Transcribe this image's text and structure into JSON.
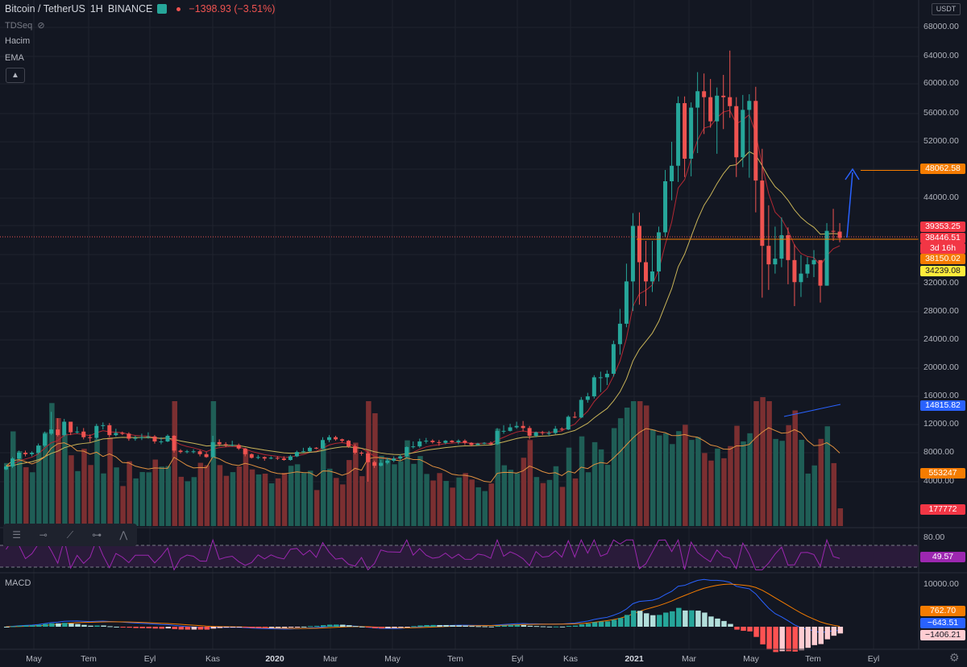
{
  "legend": {
    "symbol": "Bitcoin / TetherUS",
    "interval": "1H",
    "exchange": "BINANCE",
    "change": "−1398.93 (−3.51%)",
    "colors": {
      "up": "#26a69a",
      "down": "#ef5350"
    }
  },
  "indicators": {
    "tdseq": "TDSeq",
    "volume": "Hacim",
    "ema": "EMA",
    "collapse_icon": "chevron-up-icon",
    "macd": "MACD"
  },
  "toolbar_icons": [
    "menu-lines-icon",
    "horizontal-line-icon",
    "trend-line-icon",
    "ray-icon",
    "pattern-icon"
  ],
  "price_axis": {
    "unit": "USDT",
    "ticks": [
      "68000.00",
      "64000.00",
      "60000.00",
      "56000.00",
      "52000.00",
      "44000.00",
      "32000.00",
      "28000.00",
      "24000.00",
      "20000.00",
      "16000.00",
      "12000.00",
      "8000.00",
      "4000.00"
    ],
    "rsi_ticks": [
      "80.00"
    ],
    "macd_ticks": [
      "10000.00"
    ]
  },
  "tags": {
    "target": {
      "text": "48062.58",
      "bg": "#f57c00",
      "fg": "#ffffff"
    },
    "last_price": {
      "text": "39353.25",
      "bg": "#f23645",
      "fg": "#ffffff"
    },
    "last_price2": {
      "text": "38446.51",
      "bg": "#f23645",
      "fg": "#ffffff"
    },
    "countdown": {
      "text": "3d 16h",
      "bg": "#f23645",
      "fg": "#ffffff"
    },
    "level": {
      "text": "38150.02",
      "bg": "#f57c00",
      "fg": "#ffffff"
    },
    "ema_long": {
      "text": "34239.08",
      "bg": "#ffeb3b",
      "fg": "#131722"
    },
    "trend": {
      "text": "14815.82",
      "bg": "#2962ff",
      "fg": "#ffffff"
    },
    "vol_ma": {
      "text": "553247",
      "bg": "#f57c00",
      "fg": "#ffffff"
    },
    "volume": {
      "text": "177772",
      "bg": "#f23645",
      "fg": "#ffffff"
    },
    "rsi": {
      "text": "49.57",
      "bg": "#9c27b0",
      "fg": "#ffffff"
    },
    "macd_signal": {
      "text": "762.70",
      "bg": "#f57c00",
      "fg": "#ffffff"
    },
    "macd_line": {
      "text": "−643.51",
      "bg": "#2962ff",
      "fg": "#ffffff"
    },
    "macd_hist": {
      "text": "−1406.21",
      "bg": "#ffcdd2",
      "fg": "#131722"
    }
  },
  "time_axis": [
    "May",
    "Tem",
    "Eyl",
    "Kas",
    "2020",
    "Mar",
    "May",
    "Tem",
    "Eyl",
    "Kas",
    "2021",
    "Mar",
    "May",
    "Tem",
    "Eyl"
  ],
  "settings_icon": "gear-icon",
  "chart_data": {
    "type": "candlestick",
    "symbol": "Bitcoin / TetherUS",
    "ohlc_weekly": {
      "open": [
        5700,
        6100,
        7200,
        8000,
        7800,
        8000,
        9000,
        10700,
        11300,
        10500,
        12400,
        10900,
        11000,
        10200,
        10100,
        11800,
        11900,
        10500,
        10800,
        10700,
        10000,
        10100,
        10200,
        10300,
        9600,
        9600,
        10400,
        8300,
        8100,
        8200,
        8200,
        7800,
        7400,
        9500,
        9200,
        9100,
        9100,
        8600,
        7800,
        7300,
        7400,
        7200,
        7300,
        7200,
        7000,
        7500,
        8100,
        8200,
        8700,
        8600,
        9800,
        10200,
        9900,
        9700,
        8900,
        8000,
        7900,
        6700,
        6200,
        6600,
        6900,
        7200,
        7500,
        8800,
        8900,
        9600,
        9700,
        9500,
        9400,
        9700,
        9500,
        9700,
        9400,
        9100,
        9300,
        9400,
        9200,
        11100,
        11100,
        11600,
        11800,
        11500,
        10400,
        10900,
        10800,
        10800,
        11400,
        11300,
        13100,
        13000,
        15500,
        16000,
        18700,
        18700,
        19200,
        23400,
        26300,
        32300,
        40100,
        35000,
        32300,
        33700,
        39200,
        46400,
        48600,
        57400,
        49600,
        56800,
        59000,
        58200,
        54900,
        58400,
        58200,
        57000,
        49800,
        56500,
        57700,
        46500,
        37300,
        34700,
        35500,
        38800,
        35300,
        32200,
        33400,
        34700,
        35300,
        31700,
        39400,
        39300
      ],
      "close": [
        6100,
        7200,
        8000,
        7800,
        8000,
        9000,
        10700,
        11300,
        10500,
        12400,
        10900,
        11000,
        10200,
        10100,
        11800,
        11900,
        10500,
        10800,
        10700,
        10000,
        10100,
        10200,
        10300,
        9600,
        9600,
        10400,
        8300,
        8100,
        8200,
        8200,
        7800,
        7400,
        9500,
        9200,
        9100,
        9100,
        8600,
        7800,
        7300,
        7400,
        7200,
        7300,
        7200,
        7000,
        7500,
        8100,
        8200,
        8700,
        8600,
        9800,
        10200,
        9900,
        9700,
        8900,
        8000,
        7900,
        6700,
        6200,
        6600,
        6900,
        7200,
        7500,
        8800,
        8900,
        9600,
        9700,
        9500,
        9400,
        9700,
        9500,
        9700,
        9400,
        9100,
        9300,
        9400,
        9200,
        11100,
        11100,
        11600,
        11800,
        11500,
        10400,
        10900,
        10800,
        10800,
        11400,
        11300,
        13100,
        13000,
        15500,
        16000,
        18700,
        18700,
        19200,
        23400,
        26300,
        32300,
        40100,
        35000,
        32300,
        33700,
        39200,
        46400,
        48600,
        57400,
        49600,
        56800,
        59000,
        58200,
        54900,
        58400,
        58200,
        57000,
        49800,
        56500,
        57700,
        46500,
        37300,
        34700,
        35500,
        38800,
        35300,
        32200,
        33400,
        34700,
        35300,
        31700,
        39400,
        39300,
        38400
      ],
      "high": [
        6300,
        7400,
        8300,
        8300,
        8200,
        9300,
        11000,
        13800,
        12900,
        12800,
        12000,
        11700,
        11500,
        10600,
        12100,
        12300,
        12200,
        11400,
        11000,
        10900,
        10400,
        10700,
        10900,
        10500,
        10200,
        10600,
        10500,
        8500,
        8400,
        8500,
        8400,
        8100,
        10400,
        9900,
        9500,
        9700,
        9300,
        8700,
        7900,
        7700,
        7500,
        7500,
        7500,
        7500,
        7700,
        8300,
        8700,
        8900,
        8800,
        10200,
        10500,
        10400,
        10000,
        9800,
        9200,
        8200,
        8200,
        6900,
        7000,
        7300,
        7500,
        7800,
        8900,
        9600,
        10000,
        10100,
        9900,
        9800,
        9800,
        9800,
        9900,
        9900,
        9500,
        9400,
        9500,
        9600,
        11500,
        11900,
        12100,
        12400,
        12500,
        11800,
        11000,
        11100,
        11100,
        11800,
        11600,
        13300,
        13800,
        15900,
        16500,
        19000,
        19500,
        19700,
        23900,
        28400,
        34800,
        41900,
        42000,
        38000,
        38000,
        40000,
        48000,
        52000,
        58300,
        58300,
        57500,
        61700,
        61500,
        60700,
        59500,
        61300,
        64800,
        58200,
        58500,
        58600,
        59600,
        51000,
        43000,
        40000,
        41300,
        39900,
        37500,
        36000,
        35700,
        36700,
        35200,
        40500,
        42500,
        40500
      ],
      "low": [
        5600,
        5900,
        7100,
        7500,
        7500,
        7800,
        8800,
        10500,
        10300,
        10300,
        10500,
        10700,
        9900,
        9500,
        9900,
        11300,
        10200,
        10300,
        10500,
        9700,
        9700,
        9800,
        10000,
        9300,
        9200,
        9500,
        8000,
        7900,
        7900,
        7900,
        7500,
        7300,
        7300,
        8900,
        8800,
        8900,
        8400,
        7500,
        7200,
        7100,
        6900,
        7100,
        7000,
        6900,
        6900,
        7400,
        8000,
        8100,
        8500,
        8500,
        9500,
        9700,
        9500,
        8700,
        7800,
        7600,
        4000,
        5900,
        6100,
        6400,
        6700,
        6900,
        7300,
        8600,
        8700,
        9300,
        9300,
        9000,
        9200,
        9400,
        9200,
        9100,
        8900,
        9000,
        9200,
        9100,
        9100,
        10700,
        11000,
        11400,
        11000,
        9900,
        10200,
        10500,
        10400,
        10600,
        11100,
        11200,
        12900,
        12900,
        15100,
        15700,
        16600,
        17600,
        18800,
        21900,
        25800,
        28100,
        29000,
        28800,
        30800,
        32300,
        38600,
        43700,
        46300,
        47000,
        47100,
        50400,
        53100,
        54000,
        50300,
        53800,
        55400,
        47000,
        48400,
        46900,
        42000,
        30000,
        31100,
        33400,
        34300,
        31900,
        28800,
        30100,
        32800,
        32900,
        29300,
        31700,
        38000,
        37800
      ]
    },
    "series": [
      {
        "name": "EMA"
      },
      {
        "name": "Hacim"
      },
      {
        "name": "MACD"
      }
    ],
    "horizontal_levels": [
      48062.58,
      38150.02
    ],
    "last_price": 38446.51,
    "ylim": [
      0,
      68000
    ],
    "y_scale": "log",
    "x_labels": [
      "May",
      "Tem",
      "Eyl",
      "Kas",
      "2020",
      "Mar",
      "May",
      "Tem",
      "Eyl",
      "Kas",
      "2021",
      "Mar",
      "May",
      "Tem",
      "Eyl"
    ],
    "rsi": {
      "value": 49.57,
      "band": [
        30,
        70
      ]
    },
    "macd": {
      "macd": -643.51,
      "signal": 762.7,
      "histogram": -1406.21
    }
  }
}
